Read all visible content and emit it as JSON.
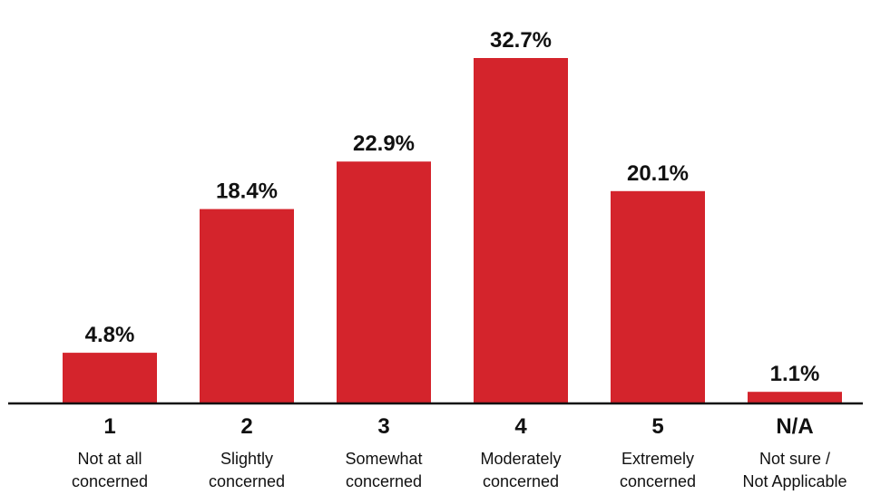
{
  "chart_data": {
    "type": "bar",
    "categories": [
      "1",
      "2",
      "3",
      "4",
      "5",
      "N/A"
    ],
    "category_descriptions": [
      [
        "Not at all",
        "concerned"
      ],
      [
        "Slightly",
        "concerned"
      ],
      [
        "Somewhat",
        "concerned"
      ],
      [
        "Moderately",
        "concerned"
      ],
      [
        "Extremely",
        "concerned"
      ],
      [
        "Not sure /",
        "Not Applicable"
      ]
    ],
    "values": [
      4.8,
      18.4,
      22.9,
      32.7,
      20.1,
      1.1
    ],
    "value_labels": [
      "4.8%",
      "18.4%",
      "22.9%",
      "32.7%",
      "20.1%",
      "1.1%"
    ],
    "ylim": [
      0,
      36
    ],
    "grid": false,
    "bar_color": "#d4242c",
    "axis_color": "#111111",
    "text_color": "#111111"
  }
}
